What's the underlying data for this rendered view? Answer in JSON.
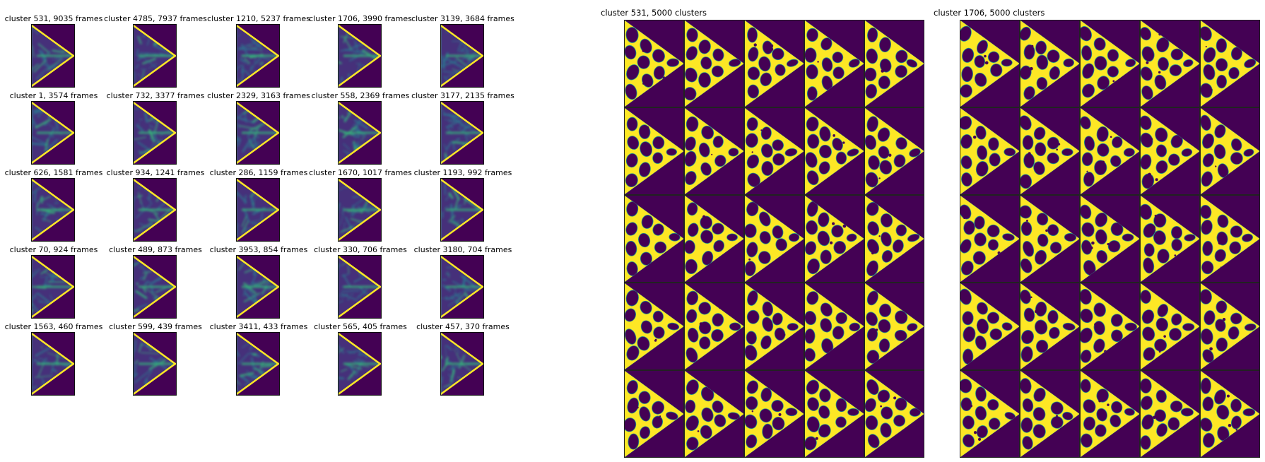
{
  "heatmap_grid": {
    "clusters": [
      {
        "id": 531,
        "frames": 9035
      },
      {
        "id": 4785,
        "frames": 7937
      },
      {
        "id": 1210,
        "frames": 5237
      },
      {
        "id": 1706,
        "frames": 3990
      },
      {
        "id": 3139,
        "frames": 3684
      },
      {
        "id": 1,
        "frames": 3574
      },
      {
        "id": 732,
        "frames": 3377
      },
      {
        "id": 2329,
        "frames": 3163
      },
      {
        "id": 558,
        "frames": 2369
      },
      {
        "id": 3177,
        "frames": 2135
      },
      {
        "id": 626,
        "frames": 1581
      },
      {
        "id": 934,
        "frames": 1241
      },
      {
        "id": 286,
        "frames": 1159
      },
      {
        "id": 1670,
        "frames": 1017
      },
      {
        "id": 1193,
        "frames": 992
      },
      {
        "id": 70,
        "frames": 924
      },
      {
        "id": 489,
        "frames": 873
      },
      {
        "id": 3953,
        "frames": 854
      },
      {
        "id": 330,
        "frames": 706
      },
      {
        "id": 3180,
        "frames": 704
      },
      {
        "id": 1563,
        "frames": 460
      },
      {
        "id": 599,
        "frames": 439
      },
      {
        "id": 3411,
        "frames": 433
      },
      {
        "id": 565,
        "frames": 405
      },
      {
        "id": 457,
        "frames": 370
      }
    ],
    "frames_word": "frames",
    "cluster_word": "cluster"
  },
  "sample_panels": [
    {
      "cluster": 531,
      "clusters_total": 5000,
      "clusters_word": "clusters",
      "rows": 5,
      "cols": 5
    },
    {
      "cluster": 1706,
      "clusters_total": 5000,
      "clusters_word": "clusters",
      "rows": 5,
      "cols": 5
    }
  ],
  "colors": {
    "background": "#440154",
    "beam": "#fde725",
    "edge": "#21918c",
    "heat_low": "#46307a",
    "heat_mid": "#2c728e",
    "heat_high": "#35b779"
  }
}
